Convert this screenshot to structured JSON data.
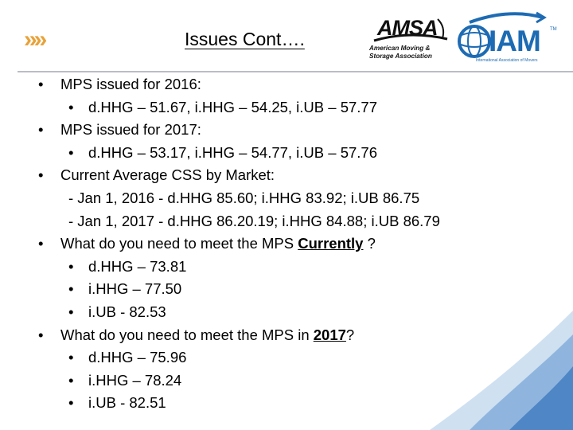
{
  "header": {
    "chevrons": "»»",
    "title": "Issues Cont…."
  },
  "logos": {
    "amsa": {
      "name": "AMSA",
      "subtitle_line1": "American Moving &",
      "subtitle_line2": "Storage Association"
    },
    "iam": {
      "name": "IAM",
      "trademark": "TM",
      "subtitle": "International Association of Movers"
    }
  },
  "bullets": [
    {
      "level": 1,
      "text": "MPS issued for 2016:"
    },
    {
      "level": 2,
      "text": "d.HHG – 51.67, i.HHG – 54.25, i.UB – 57.77"
    },
    {
      "level": 1,
      "text": "MPS issued for 2017:"
    },
    {
      "level": 2,
      "text": "d.HHG – 53.17, i.HHG – 54.77, i.UB – 57.76"
    },
    {
      "level": 1,
      "text": "Current Average CSS by Market:"
    },
    {
      "level": 3,
      "text": "- Jan 1, 2016 - d.HHG 85.60; i.HHG 83.92; i.UB 86.75"
    },
    {
      "level": 3,
      "text": "- Jan 1, 2017 - d.HHG 86.20.19; i.HHG 84.88; i.UB 86.79"
    },
    {
      "level": 1,
      "pre": "What do you need to meet the MPS ",
      "emph": "Currently",
      "post": " ?"
    },
    {
      "level": 2,
      "text": "d.HHG – 73.81"
    },
    {
      "level": 2,
      "text": "i.HHG – 77.50"
    },
    {
      "level": 2,
      "text": "i.UB - 82.53"
    },
    {
      "level": 1,
      "pre": "What do you need to meet the MPS in ",
      "emph": "2017",
      "post": "?"
    },
    {
      "level": 2,
      "text": "d.HHG – 75.96"
    },
    {
      "level": 2,
      "text": "i.HHG – 78.24"
    },
    {
      "level": 2,
      "text": "i.UB - 82.51"
    }
  ],
  "colors": {
    "accent_orange": "#e8a23a",
    "iam_blue": "#1d6bb3",
    "rule_gray": "#b8bec6",
    "wave_blue": "#4f86c6"
  }
}
